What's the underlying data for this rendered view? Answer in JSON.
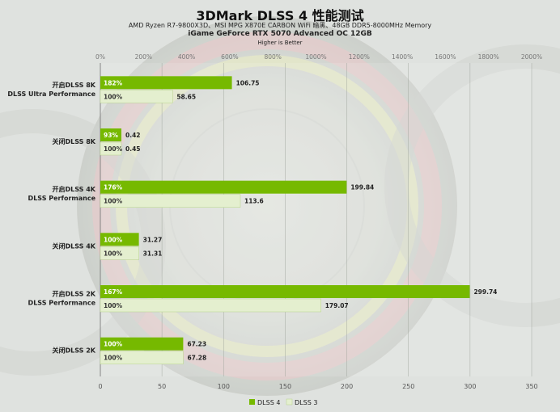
{
  "title": "3DMark DLSS 4 性能测试",
  "subtitle_lines": [
    "AMD Ryzen R7-9800X3D、MSI MPG X870E CARBON WiFi 暗黑、48GB DDR5-8000MHz Memory",
    "iGame GeForce RTX 5070 Advanced OC 12GB",
    "Higher is Better"
  ],
  "colors": {
    "dlss4": "#76b900",
    "dlss3": "#e4efcf",
    "dlss3_border": "#b7d38a"
  },
  "chart_data": {
    "type": "bar",
    "orientation": "horizontal",
    "categories": [
      [
        "开启DLSS 8K",
        "DLSS Ultra Performance"
      ],
      [
        "关闭DLSS 8K"
      ],
      [
        "开启DLSS 4K",
        "DLSS Performance"
      ],
      [
        "关闭DLSS 4K"
      ],
      [
        "开启DLSS 2K",
        "DLSS Performance"
      ],
      [
        "关闭DLSS 2K"
      ]
    ],
    "series": [
      {
        "name": "DLSS 4",
        "values": [
          106.75,
          0.42,
          199.84,
          31.27,
          299.74,
          67.23
        ],
        "percent_labels": [
          "182%",
          "93%",
          "176%",
          "100%",
          "167%",
          "100%"
        ]
      },
      {
        "name": "DLSS 3",
        "values": [
          58.65,
          0.45,
          113.6,
          31.31,
          179.07,
          67.28
        ],
        "percent_labels": [
          "100%",
          "100%",
          "100%",
          "100%",
          "100%",
          "100%"
        ]
      }
    ],
    "x_bottom": {
      "min": 0,
      "max": 350,
      "ticks": [
        "0",
        "50",
        "100",
        "150",
        "200",
        "250",
        "300",
        "350"
      ]
    },
    "x_top": {
      "ticks": [
        "0%",
        "200%",
        "400%",
        "600%",
        "800%",
        "1000%",
        "1200%",
        "1400%",
        "1600%",
        "1800%",
        "2000%"
      ]
    },
    "grid": true,
    "legend_placement": "bottom-center"
  }
}
